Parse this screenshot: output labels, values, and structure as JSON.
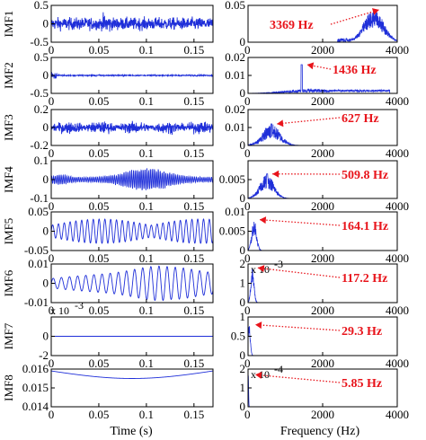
{
  "chart_data": {
    "type": "line",
    "line_color": "#1f2fd9",
    "annotation_color": "#e8141b",
    "time_axis": {
      "label": "Time (s)",
      "xlim": [
        0,
        0.17
      ],
      "ticks": [
        0,
        0.05,
        0.1,
        0.15
      ],
      "tick_labels": [
        "0",
        "0.05",
        "0.1",
        "0.15"
      ]
    },
    "freq_axis": {
      "label": "Frequency (Hz)",
      "xlim": [
        0,
        4000
      ],
      "ticks": [
        0,
        2000,
        4000
      ],
      "tick_labels": [
        "0",
        "2000",
        "4000"
      ]
    },
    "imfs": [
      {
        "name": "IMF1",
        "time": {
          "ylim": [
            -0.5,
            0.5
          ],
          "ytick_labels": [
            "0.5",
            "0",
            "-0.5"
          ],
          "yticks": [
            0.5,
            0,
            -0.5
          ],
          "exponent": ""
        },
        "spectrum": {
          "ylim": [
            0,
            0.05
          ],
          "ytick_labels": [
            "0.05",
            "0"
          ],
          "yticks": [
            0.05,
            0
          ],
          "exponent": "",
          "peak_hz": 3369,
          "peak_value": 0.044,
          "label": "3369 Hz"
        }
      },
      {
        "name": "IMF2",
        "time": {
          "ylim": [
            -0.5,
            0.5
          ],
          "ytick_labels": [
            "0.5",
            "0",
            "-0.5"
          ],
          "yticks": [
            0.5,
            0,
            -0.5
          ],
          "exponent": ""
        },
        "spectrum": {
          "ylim": [
            0,
            0.02
          ],
          "ytick_labels": [
            "0.02",
            "0.01",
            "0"
          ],
          "yticks": [
            0.02,
            0.01,
            0
          ],
          "exponent": "",
          "peak_hz": 1436,
          "peak_value": 0.016,
          "label": "1436 Hz"
        }
      },
      {
        "name": "IMF3",
        "time": {
          "ylim": [
            -0.2,
            0.2
          ],
          "ytick_labels": [
            "0.2",
            "0",
            "-0.2"
          ],
          "yticks": [
            0.2,
            0,
            -0.2
          ],
          "exponent": ""
        },
        "spectrum": {
          "ylim": [
            0,
            0.02
          ],
          "ytick_labels": [
            "0.02",
            "0.01",
            "0"
          ],
          "yticks": [
            0.02,
            0.01,
            0
          ],
          "exponent": "",
          "peak_hz": 627,
          "peak_value": 0.012,
          "label": "627 Hz"
        }
      },
      {
        "name": "IMF4",
        "time": {
          "ylim": [
            -0.1,
            0.1
          ],
          "ytick_labels": [
            "0.1",
            "0",
            "-0.1"
          ],
          "yticks": [
            0.1,
            0,
            -0.1
          ],
          "exponent": ""
        },
        "spectrum": {
          "ylim": [
            0,
            0.01
          ],
          "ytick_labels": [
            "0.005",
            "0"
          ],
          "yticks": [
            0.005,
            0
          ],
          "exponent": "",
          "peak_hz": 509.8,
          "peak_value": 0.0065,
          "label": "509.8 Hz"
        }
      },
      {
        "name": "IMF5",
        "time": {
          "ylim": [
            -0.05,
            0.05
          ],
          "ytick_labels": [
            "0.05",
            "0",
            "-0.05"
          ],
          "yticks": [
            0.05,
            0,
            -0.05
          ],
          "exponent": ""
        },
        "spectrum": {
          "ylim": [
            0,
            0.01
          ],
          "ytick_labels": [
            "0.01",
            "0.005",
            "0"
          ],
          "yticks": [
            0.01,
            0.005,
            0
          ],
          "exponent": "",
          "peak_hz": 164.1,
          "peak_value": 0.008,
          "label": "164.1 Hz"
        }
      },
      {
        "name": "IMF6",
        "time": {
          "ylim": [
            -0.01,
            0.01
          ],
          "ytick_labels": [
            "0.01",
            "0",
            "-0.01"
          ],
          "yticks": [
            0.01,
            0,
            -0.01
          ],
          "exponent": ""
        },
        "spectrum": {
          "ylim": [
            0,
            2
          ],
          "ytick_labels": [
            "2",
            "1",
            "0"
          ],
          "yticks": [
            2,
            1,
            0
          ],
          "exponent": "-3",
          "peak_hz": 117.2,
          "peak_value": 1.8,
          "label": "117.2 Hz"
        }
      },
      {
        "name": "IMF7",
        "time": {
          "ylim": [
            -2,
            2
          ],
          "ytick_labels": [
            "0",
            "-2"
          ],
          "yticks": [
            0,
            -2
          ],
          "exponent": "-3"
        },
        "spectrum": {
          "ylim": [
            0,
            1
          ],
          "ytick_labels": [
            "1",
            "0.5",
            "0"
          ],
          "yticks": [
            1,
            0.5,
            0
          ],
          "exponent": "",
          "peak_hz": 29.3,
          "peak_value": 0.8,
          "label": "29.3 Hz"
        }
      },
      {
        "name": "IMF8",
        "time": {
          "ylim": [
            0.014,
            0.016
          ],
          "ytick_labels": [
            "0.016",
            "0.015",
            "0.014"
          ],
          "yticks": [
            0.016,
            0.015,
            0.014
          ],
          "exponent": ""
        },
        "spectrum": {
          "ylim": [
            0,
            2
          ],
          "ytick_labels": [
            "2",
            "1",
            "0"
          ],
          "yticks": [
            2,
            1,
            0
          ],
          "exponent": "-4",
          "peak_hz": 5.85,
          "peak_value": 1.7,
          "label": "5.85 Hz"
        }
      }
    ]
  }
}
